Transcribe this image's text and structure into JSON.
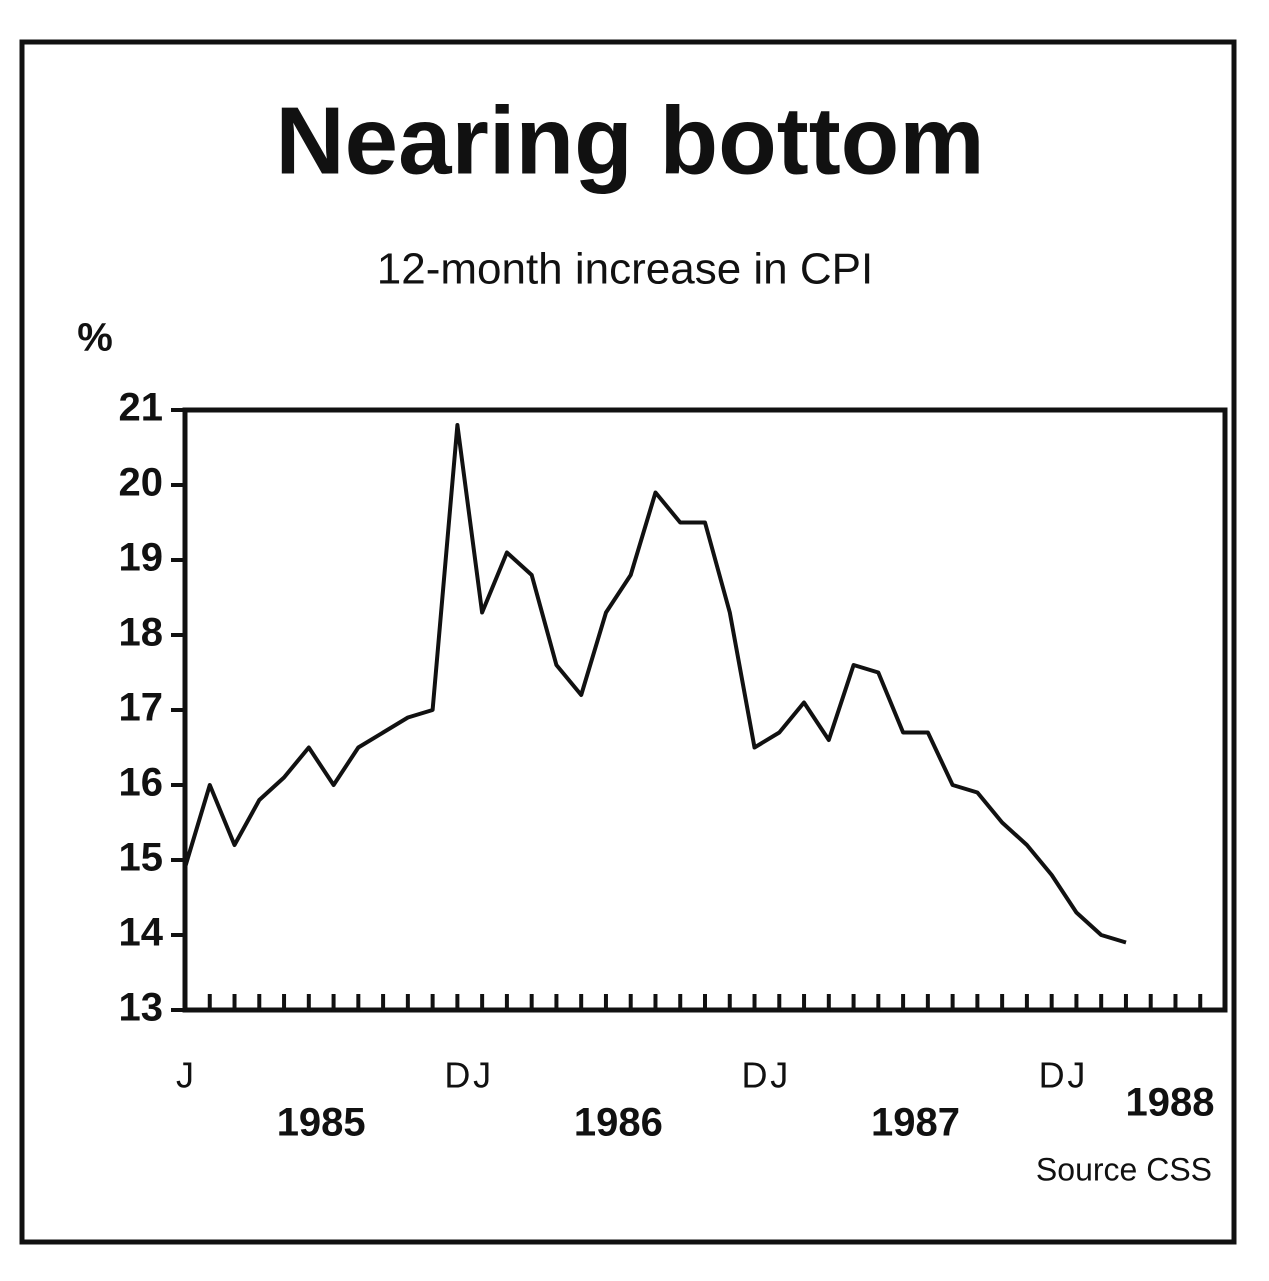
{
  "chart_data": {
    "type": "line",
    "title": "Nearing bottom",
    "subtitle": "12-month increase in CPI",
    "y_label": "%",
    "source": "Source CSS",
    "year_labels": [
      "1985",
      "1986",
      "1987",
      "1988"
    ],
    "categories": [
      "J",
      null,
      null,
      null,
      null,
      null,
      null,
      null,
      null,
      null,
      null,
      "D",
      "J",
      null,
      null,
      null,
      null,
      null,
      null,
      null,
      null,
      null,
      null,
      "D",
      "J",
      null,
      null,
      null,
      null,
      null,
      null,
      null,
      null,
      null,
      null,
      "D",
      "J",
      null,
      null,
      null,
      null,
      null,
      null
    ],
    "series": [
      {
        "name": "CPI",
        "color": "#111111",
        "values": [
          14.9,
          16.0,
          15.2,
          15.8,
          16.1,
          16.5,
          16.0,
          16.5,
          16.7,
          16.9,
          17.0,
          20.8,
          18.3,
          19.1,
          18.8,
          17.6,
          17.2,
          18.3,
          18.8,
          19.9,
          19.5,
          19.5,
          18.3,
          16.5,
          16.7,
          17.1,
          16.6,
          17.6,
          17.5,
          16.7,
          16.7,
          16.0,
          15.9,
          15.5,
          15.2,
          14.8,
          14.3,
          14.0,
          13.9,
          null,
          null,
          null,
          null
        ]
      }
    ],
    "ylim": [
      13,
      21
    ],
    "yticks": [
      13,
      14,
      15,
      16,
      17,
      18,
      19,
      20,
      21
    ]
  }
}
